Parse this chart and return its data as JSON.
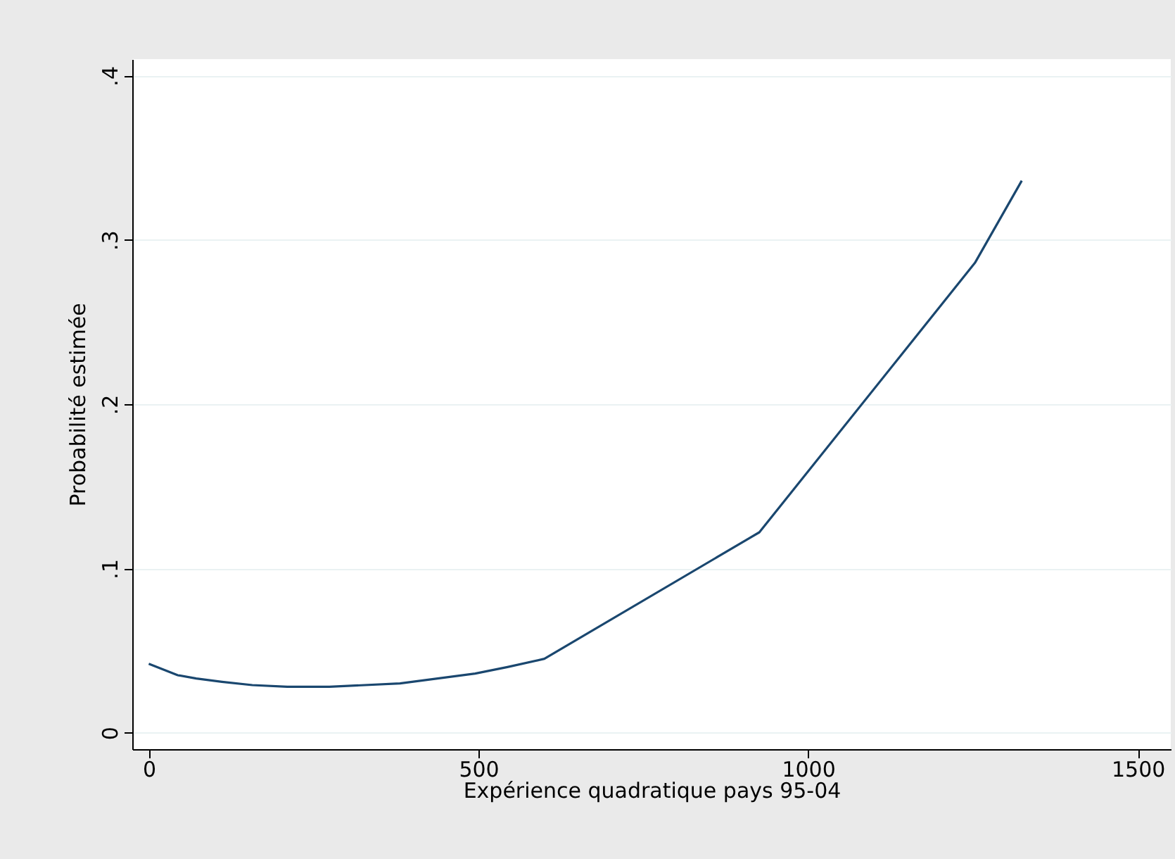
{
  "chart_data": {
    "type": "line",
    "xlabel": "Expérience quadratique pays 95-04",
    "ylabel": "Probabilité estimée",
    "x": [
      0,
      44,
      72,
      111,
      157,
      210,
      274,
      381,
      495,
      544,
      600,
      926,
      1253,
      1324
    ],
    "series": [
      {
        "color": "#1a476f",
        "values": [
          0.042,
          0.035,
          0.033,
          0.031,
          0.029,
          0.028,
          0.028,
          0.03,
          0.036,
          0.04,
          0.045,
          0.122,
          0.286,
          0.336
        ]
      }
    ],
    "xlim": [
      -25,
      1550
    ],
    "ylim": [
      -0.01,
      0.41
    ],
    "xticks": [
      0,
      500,
      1000,
      1500
    ],
    "yticks": [
      0,
      {
        "value": 0.1,
        "label": ".1"
      },
      {
        "value": 0.2,
        "label": ".2"
      },
      {
        "value": 0.3,
        "label": ".3"
      },
      {
        "value": 0.4,
        "label": ".4"
      }
    ],
    "grid": "y",
    "marker": "none",
    "line_style": "solid"
  }
}
